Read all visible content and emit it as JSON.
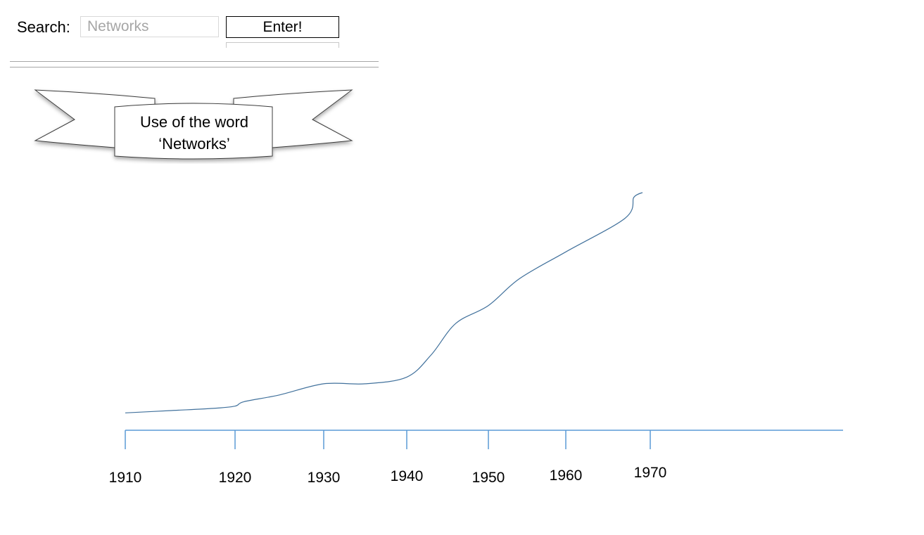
{
  "search": {
    "label": "Search:",
    "placeholder": "Networks",
    "value": "",
    "button_label": "Enter!"
  },
  "banner": {
    "line1": "Use of the word",
    "line2": "‘Networks’"
  },
  "colors": {
    "axis": "#5b9bd5",
    "curve": "#41719c"
  },
  "chart_data": {
    "type": "line",
    "title": "",
    "xlabel": "",
    "ylabel": "",
    "x_ticks": [
      1910,
      1920,
      1930,
      1940,
      1950,
      1960,
      1970
    ],
    "xlim": [
      1910,
      1970
    ],
    "grid": false,
    "series": [
      {
        "values": [
          [
            1910,
            0.04
          ],
          [
            1914,
            0.05
          ],
          [
            1918,
            0.06
          ],
          [
            1920,
            0.07
          ],
          [
            1921,
            0.09
          ],
          [
            1925,
            0.12
          ],
          [
            1930,
            0.17
          ],
          [
            1935,
            0.17
          ],
          [
            1940,
            0.2
          ],
          [
            1943,
            0.3
          ],
          [
            1946,
            0.44
          ],
          [
            1950,
            0.52
          ],
          [
            1954,
            0.64
          ],
          [
            1960,
            0.76
          ],
          [
            1967,
            0.91
          ],
          [
            1968,
            1.0
          ]
        ]
      }
    ]
  }
}
